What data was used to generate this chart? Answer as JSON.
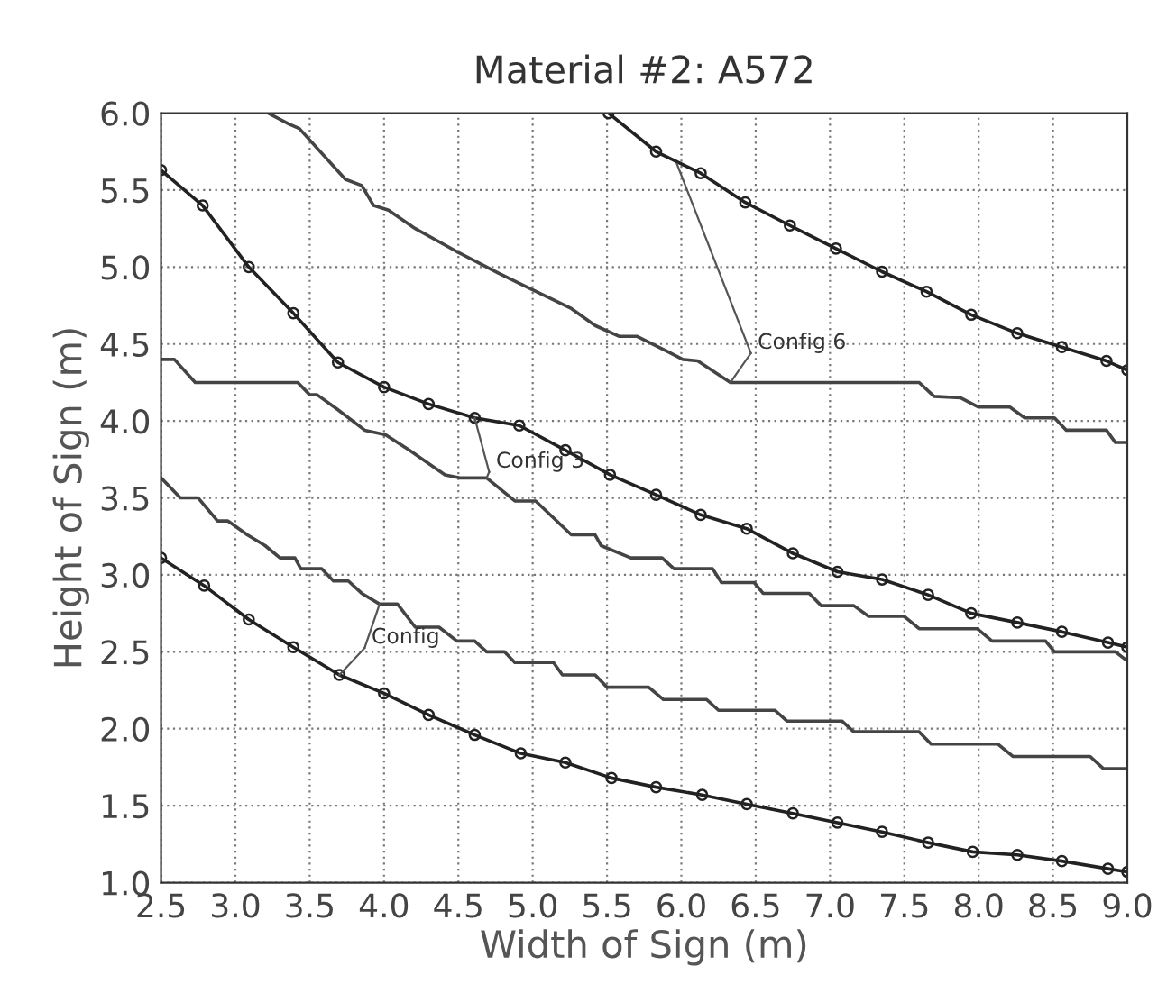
{
  "chart_data": {
    "type": "line",
    "title": "Material #2: A572",
    "xlabel": "Width of Sign (m)",
    "ylabel": "Height of Sign (m)",
    "xlim": [
      2.5,
      9.0
    ],
    "ylim": [
      1.0,
      6.0
    ],
    "xticks": [
      {
        "value": 2.5,
        "label": "2.5"
      },
      {
        "value": 3.0,
        "label": "3.0"
      },
      {
        "value": 3.5,
        "label": "3.5"
      },
      {
        "value": 4.0,
        "label": "4.0"
      },
      {
        "value": 4.5,
        "label": "4.5"
      },
      {
        "value": 5.0,
        "label": "5.0"
      },
      {
        "value": 5.5,
        "label": "5.5"
      },
      {
        "value": 6.0,
        "label": "6.0"
      },
      {
        "value": 6.5,
        "label": "6.5"
      },
      {
        "value": 7.0,
        "label": "7.0"
      },
      {
        "value": 7.5,
        "label": "7.5"
      },
      {
        "value": 8.0,
        "label": "8.0"
      },
      {
        "value": 8.5,
        "label": "8.5"
      },
      {
        "value": 9.0,
        "label": "9.0"
      }
    ],
    "yticks": [
      {
        "value": 1.0,
        "label": "1.0"
      },
      {
        "value": 1.5,
        "label": "1.5"
      },
      {
        "value": 2.0,
        "label": "2.0"
      },
      {
        "value": 2.5,
        "label": "2.5"
      },
      {
        "value": 3.0,
        "label": "3.0"
      },
      {
        "value": 3.5,
        "label": "3.5"
      },
      {
        "value": 4.0,
        "label": "4.0"
      },
      {
        "value": 4.5,
        "label": "4.5"
      },
      {
        "value": 5.0,
        "label": "5.0"
      },
      {
        "value": 5.5,
        "label": "5.5"
      },
      {
        "value": 6.0,
        "label": "6.0"
      }
    ],
    "grid": true,
    "legend": false,
    "line_style": "solid",
    "series": [
      {
        "color": "#222222",
        "marker": "circle",
        "x": [
          5.51,
          5.83,
          6.13,
          6.43,
          6.73,
          7.04,
          7.35,
          7.65,
          7.95,
          8.26,
          8.56,
          8.86,
          9.0
        ],
        "values": [
          6.0,
          5.75,
          5.61,
          5.42,
          5.27,
          5.12,
          4.97,
          4.84,
          4.69,
          4.57,
          4.48,
          4.39,
          4.33
        ]
      },
      {
        "color": "#444444",
        "marker": "none",
        "x": [
          3.22,
          3.36,
          3.43,
          3.74,
          3.85,
          3.93,
          4.03,
          4.21,
          4.49,
          4.77,
          4.94,
          5.26,
          5.42,
          5.58,
          5.7,
          5.91,
          6.01,
          6.11,
          6.33,
          7.6,
          7.7,
          7.88,
          8.0,
          8.21,
          8.31,
          8.51,
          8.59,
          8.86,
          8.92,
          9.0
        ],
        "values": [
          6.0,
          5.93,
          5.9,
          5.57,
          5.53,
          5.4,
          5.37,
          5.25,
          5.1,
          4.96,
          4.88,
          4.73,
          4.62,
          4.55,
          4.55,
          4.45,
          4.4,
          4.39,
          4.25,
          4.25,
          4.16,
          4.15,
          4.09,
          4.09,
          4.02,
          4.02,
          3.94,
          3.94,
          3.86,
          3.86
        ]
      },
      {
        "color": "#222222",
        "marker": "circle",
        "x": [
          2.5,
          2.78,
          3.09,
          3.39,
          3.69,
          4.0,
          4.3,
          4.61,
          4.91,
          5.22,
          5.52,
          5.83,
          6.13,
          6.44,
          6.75,
          7.05,
          7.35,
          7.66,
          7.95,
          8.26,
          8.56,
          8.87,
          9.0
        ],
        "values": [
          5.63,
          5.4,
          5.0,
          4.7,
          4.38,
          4.22,
          4.11,
          4.02,
          3.97,
          3.81,
          3.65,
          3.52,
          3.39,
          3.3,
          3.14,
          3.02,
          2.97,
          2.87,
          2.75,
          2.69,
          2.63,
          2.56,
          2.53
        ]
      },
      {
        "color": "#444444",
        "marker": "none",
        "x": [
          2.5,
          2.59,
          2.73,
          3.42,
          3.5,
          3.55,
          3.68,
          3.87,
          4.01,
          4.17,
          4.41,
          4.51,
          4.69,
          4.88,
          5.02,
          5.26,
          5.42,
          5.46,
          5.66,
          5.87,
          5.95,
          6.21,
          6.27,
          6.49,
          6.55,
          6.86,
          6.94,
          7.16,
          7.26,
          7.5,
          7.6,
          7.99,
          8.09,
          8.45,
          8.51,
          8.92,
          9.0
        ],
        "values": [
          4.4,
          4.4,
          4.25,
          4.25,
          4.17,
          4.17,
          4.08,
          3.94,
          3.91,
          3.81,
          3.65,
          3.63,
          3.63,
          3.48,
          3.48,
          3.26,
          3.26,
          3.19,
          3.11,
          3.11,
          3.04,
          3.04,
          2.95,
          2.95,
          2.88,
          2.88,
          2.8,
          2.8,
          2.73,
          2.73,
          2.65,
          2.65,
          2.57,
          2.57,
          2.5,
          2.5,
          2.44
        ]
      },
      {
        "color": "#222222",
        "marker": "circle",
        "x": [
          2.5,
          2.79,
          3.09,
          3.39,
          3.7,
          4.0,
          4.3,
          4.61,
          4.92,
          5.22,
          5.53,
          5.83,
          6.14,
          6.44,
          6.75,
          7.05,
          7.35,
          7.66,
          7.96,
          8.26,
          8.56,
          8.87,
          9.0
        ],
        "values": [
          3.11,
          2.93,
          2.71,
          2.53,
          2.35,
          2.23,
          2.09,
          1.96,
          1.84,
          1.78,
          1.68,
          1.62,
          1.57,
          1.51,
          1.45,
          1.39,
          1.33,
          1.26,
          1.2,
          1.18,
          1.14,
          1.09,
          1.07
        ]
      },
      {
        "color": "#444444",
        "marker": "none",
        "x": [
          2.5,
          2.63,
          2.75,
          2.88,
          2.95,
          3.08,
          3.2,
          3.3,
          3.4,
          3.44,
          3.58,
          3.66,
          3.76,
          3.85,
          3.97,
          4.09,
          4.21,
          4.37,
          4.49,
          4.61,
          4.69,
          4.81,
          4.88,
          5.14,
          5.2,
          5.42,
          5.5,
          5.78,
          5.88,
          6.17,
          6.25,
          6.63,
          6.71,
          7.08,
          7.16,
          7.6,
          7.68,
          8.13,
          8.23,
          8.75,
          8.84,
          9.0
        ],
        "values": [
          3.63,
          3.5,
          3.5,
          3.35,
          3.35,
          3.26,
          3.19,
          3.11,
          3.11,
          3.04,
          3.04,
          2.96,
          2.96,
          2.88,
          2.81,
          2.81,
          2.66,
          2.66,
          2.57,
          2.57,
          2.5,
          2.5,
          2.43,
          2.43,
          2.35,
          2.35,
          2.27,
          2.27,
          2.19,
          2.19,
          2.12,
          2.12,
          2.05,
          2.05,
          1.98,
          1.98,
          1.9,
          1.9,
          1.82,
          1.82,
          1.74,
          1.74
        ]
      }
    ],
    "annotations": [
      {
        "text": "Config 6",
        "x": 5.97,
        "y": 5.67
      },
      {
        "text": "Config 3",
        "x": 4.61,
        "y": 4.02
      },
      {
        "text": "Config",
        "x": 3.7,
        "y": 2.35
      }
    ]
  }
}
